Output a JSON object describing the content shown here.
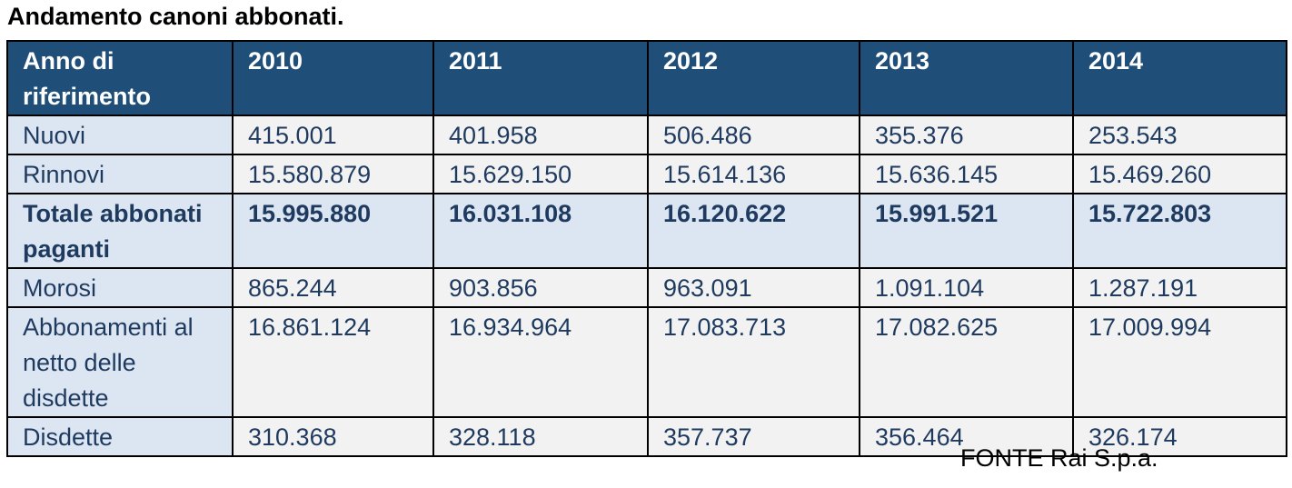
{
  "title": "Andamento canoni abbonati.",
  "table": {
    "header": [
      "Anno di riferimento",
      "2010",
      "2011",
      "2012",
      "2013",
      "2014"
    ],
    "rows": [
      {
        "label": "Nuovi",
        "values": [
          "415.001",
          "401.958",
          "506.486",
          "355.376",
          "253.543"
        ]
      },
      {
        "label": "Rinnovi",
        "values": [
          "15.580.879",
          "15.629.150",
          "15.614.136",
          "15.636.145",
          "15.469.260"
        ]
      },
      {
        "label": "Totale abbonati paganti",
        "values": [
          "15.995.880",
          "16.031.108",
          "16.120.622",
          "15.991.521",
          "15.722.803"
        ]
      },
      {
        "label": "Morosi",
        "values": [
          "865.244",
          "903.856",
          "963.091",
          "1.091.104",
          "1.287.191"
        ]
      },
      {
        "label": "Abbonamenti al netto delle disdette",
        "values": [
          "16.861.124",
          "16.934.964",
          "17.083.713",
          "17.082.625",
          "17.009.994"
        ]
      },
      {
        "label": "Disdette",
        "values": [
          "310.368",
          "328.118",
          "357.737",
          "356.464",
          "326.174"
        ]
      }
    ]
  },
  "source": "FONTE Rai S.p.a.",
  "colors": {
    "header_bg": "#1f4e79",
    "header_text": "#ffffff",
    "label_bg": "#dce6f2",
    "value_bg": "#f2f2f2",
    "body_text": "#1f3a5f"
  }
}
